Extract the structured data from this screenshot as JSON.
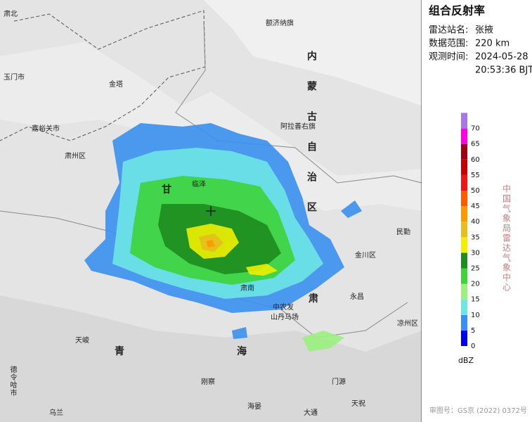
{
  "panel": {
    "title": "组合反射率",
    "rows": [
      {
        "label": "雷达站名:",
        "value": "张掖"
      },
      {
        "label": "数据范围:",
        "value": "220 km"
      },
      {
        "label": "观测时间:",
        "value": "2024-05-28"
      }
    ],
    "time": "20:53:36 BJT"
  },
  "legend": {
    "unit": "dBZ",
    "vertical_text": "中国气象局雷达气象中心",
    "levels": [
      {
        "value": 0,
        "color": "#0000f0"
      },
      {
        "value": 5,
        "color": "#3a8ff0"
      },
      {
        "value": 10,
        "color": "#6ee6e6"
      },
      {
        "value": 15,
        "color": "#9bf07e"
      },
      {
        "value": 20,
        "color": "#3ed33a"
      },
      {
        "value": 25,
        "color": "#1e8c1e"
      },
      {
        "value": 30,
        "color": "#f0f000"
      },
      {
        "value": 35,
        "color": "#e6be1e"
      },
      {
        "value": 40,
        "color": "#ff9900"
      },
      {
        "value": 45,
        "color": "#ff5a00"
      },
      {
        "value": 50,
        "color": "#f01414"
      },
      {
        "value": 55,
        "color": "#c80000"
      },
      {
        "value": 60,
        "color": "#a00014"
      },
      {
        "value": 65,
        "color": "#ff00e6"
      },
      {
        "value": 70,
        "color": "#a678e6"
      }
    ]
  },
  "map": {
    "labels": [
      "肃北",
      "玉门市",
      "金塔",
      "额济纳旗",
      "内蒙古自治区",
      "嘉峪关市",
      "肃州区",
      "阿拉善右旗",
      "甘",
      "临泽",
      "民勤",
      "金川区",
      "永昌",
      "肃",
      "肃南",
      "中农发",
      "山丹马场",
      "青",
      "海",
      "天峻",
      "刚察",
      "门源",
      "海晏",
      "大通",
      "天祝",
      "凉州区",
      "乌兰",
      "德令哈市"
    ]
  },
  "footer": "审图号：GS京 (2022) 0372号"
}
